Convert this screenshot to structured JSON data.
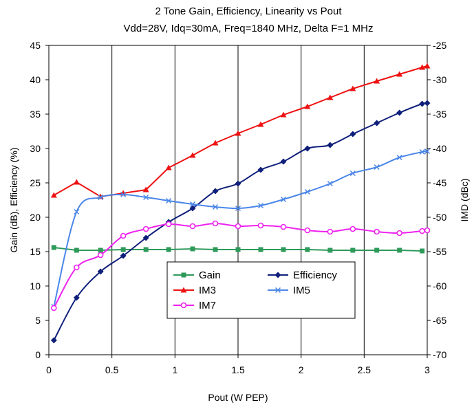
{
  "chart_data": {
    "type": "line",
    "title": "2 Tone Gain, Efficiency, Linearity vs Pout",
    "subtitle": "Vdd=28V, Idq=30mA, Freq=1840 MHz, Delta F=1 MHz",
    "xlabel": "Pout (W PEP)",
    "ylabel": "Gain (dB), Efficiency (%)",
    "y2label": "IMD (dBc)",
    "xlim": [
      0,
      3
    ],
    "ylim": [
      0,
      45
    ],
    "y2lim": [
      -70,
      -25
    ],
    "xticks": [
      "0",
      "0.5",
      "1",
      "1.5",
      "2",
      "2.5",
      "3"
    ],
    "yticks": [
      "0",
      "5",
      "10",
      "15",
      "20",
      "25",
      "30",
      "35",
      "40",
      "45"
    ],
    "y2ticks": [
      "-70",
      "-65",
      "-60",
      "-55",
      "-50",
      "-45",
      "-40",
      "-35",
      "-30",
      "-25"
    ],
    "grid": "vertical",
    "legend_position": "center-bottom",
    "series": [
      {
        "name": "Gain",
        "axis": "left",
        "color": "#2e9a5a",
        "marker": "square",
        "x": [
          0.04,
          0.22,
          0.41,
          0.59,
          0.77,
          0.95,
          1.14,
          1.32,
          1.5,
          1.68,
          1.86,
          2.05,
          2.23,
          2.41,
          2.6,
          2.78,
          2.96
        ],
        "y": [
          15.6,
          15.2,
          15.2,
          15.3,
          15.3,
          15.3,
          15.4,
          15.3,
          15.3,
          15.3,
          15.3,
          15.3,
          15.2,
          15.2,
          15.2,
          15.2,
          15.1
        ]
      },
      {
        "name": "Efficiency",
        "axis": "left",
        "color": "#0f1f7a",
        "marker": "diamond",
        "x": [
          0.04,
          0.22,
          0.41,
          0.59,
          0.77,
          0.95,
          1.14,
          1.32,
          1.5,
          1.68,
          1.86,
          2.05,
          2.23,
          2.41,
          2.6,
          2.78,
          2.96,
          3.0
        ],
        "y": [
          2.1,
          8.3,
          12.1,
          14.4,
          17.0,
          19.3,
          21.3,
          23.8,
          24.9,
          26.9,
          28.1,
          30.0,
          30.5,
          32.1,
          33.7,
          35.2,
          36.5,
          36.6
        ]
      },
      {
        "name": "IM3",
        "axis": "right",
        "color": "#ee1111",
        "marker": "triangle",
        "x": [
          0.04,
          0.22,
          0.41,
          0.59,
          0.77,
          0.95,
          1.14,
          1.32,
          1.5,
          1.68,
          1.86,
          2.05,
          2.23,
          2.41,
          2.6,
          2.78,
          2.96,
          3.0
        ],
        "y": [
          -46.8,
          -44.9,
          -47.0,
          -46.5,
          -46.0,
          -42.8,
          -41.0,
          -39.2,
          -37.8,
          -36.5,
          -35.1,
          -33.9,
          -32.6,
          -31.3,
          -30.2,
          -29.2,
          -28.2,
          -28.0
        ]
      },
      {
        "name": "IM5",
        "axis": "right",
        "color": "#4a86e8",
        "marker": "x",
        "x": [
          0.04,
          0.22,
          0.41,
          0.59,
          0.77,
          0.95,
          1.14,
          1.32,
          1.5,
          1.68,
          1.86,
          2.05,
          2.23,
          2.41,
          2.6,
          2.78,
          2.96,
          3.0
        ],
        "y": [
          -63.0,
          -49.2,
          -47.1,
          -46.7,
          -47.1,
          -47.6,
          -48.1,
          -48.5,
          -48.7,
          -48.3,
          -47.4,
          -46.3,
          -45.1,
          -43.6,
          -42.7,
          -41.3,
          -40.5,
          -40.4
        ]
      },
      {
        "name": "IM7",
        "axis": "right",
        "color": "#ee22ee",
        "marker": "circle",
        "x": [
          0.04,
          0.22,
          0.41,
          0.59,
          0.77,
          0.95,
          1.14,
          1.32,
          1.5,
          1.68,
          1.86,
          2.05,
          2.23,
          2.41,
          2.6,
          2.78,
          2.96,
          3.0
        ],
        "y": [
          -63.2,
          -57.3,
          -55.5,
          -52.7,
          -51.7,
          -51.0,
          -51.3,
          -50.9,
          -51.3,
          -51.2,
          -51.4,
          -51.9,
          -52.1,
          -51.7,
          -52.1,
          -52.3,
          -52.0,
          -51.9
        ]
      }
    ]
  }
}
